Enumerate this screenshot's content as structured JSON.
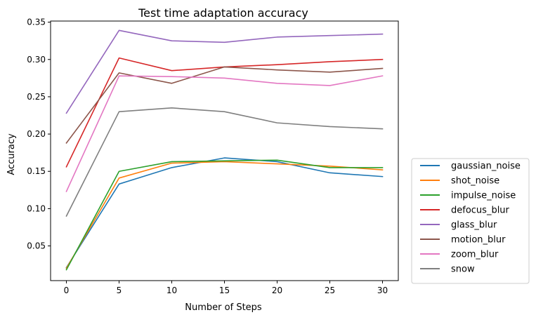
{
  "chart_data": {
    "type": "line",
    "title": "Test time adaptation accuracy",
    "xlabel": "Number of Steps",
    "ylabel": "Accuracy",
    "x": [
      0,
      5,
      10,
      15,
      20,
      25,
      30
    ],
    "xlim": [
      -1.5,
      31.5
    ],
    "ylim": [
      0.0035,
      0.3515
    ],
    "xticks": [
      "0",
      "5",
      "10",
      "15",
      "20",
      "25",
      "30"
    ],
    "yticks": [
      "0.05",
      "0.10",
      "0.15",
      "0.20",
      "0.25",
      "0.30",
      "0.35"
    ],
    "grid": false,
    "legend_position": "lower-right-outside",
    "series": [
      {
        "name": "gaussian_noise",
        "color": "#1f77b4",
        "values": [
          0.021,
          0.133,
          0.155,
          0.168,
          0.163,
          0.148,
          0.143
        ]
      },
      {
        "name": "shot_noise",
        "color": "#ff7f0e",
        "values": [
          0.02,
          0.141,
          0.161,
          0.163,
          0.16,
          0.157,
          0.152
        ]
      },
      {
        "name": "impulse_noise",
        "color": "#2ca02c",
        "values": [
          0.018,
          0.15,
          0.163,
          0.164,
          0.165,
          0.155,
          0.155
        ]
      },
      {
        "name": "defocus_blur",
        "color": "#d62728",
        "values": [
          0.156,
          0.302,
          0.285,
          0.29,
          0.293,
          0.297,
          0.3
        ]
      },
      {
        "name": "glass_blur",
        "color": "#9467bd",
        "values": [
          0.228,
          0.339,
          0.325,
          0.323,
          0.33,
          0.332,
          0.334
        ]
      },
      {
        "name": "motion_blur",
        "color": "#8c564b",
        "values": [
          0.188,
          0.282,
          0.268,
          0.29,
          0.286,
          0.283,
          0.288
        ]
      },
      {
        "name": "zoom_blur",
        "color": "#e377c2",
        "values": [
          0.123,
          0.278,
          0.277,
          0.275,
          0.268,
          0.265,
          0.278
        ]
      },
      {
        "name": "snow",
        "color": "#7f7f7f",
        "values": [
          0.09,
          0.23,
          0.235,
          0.23,
          0.215,
          0.21,
          0.207
        ]
      }
    ]
  }
}
